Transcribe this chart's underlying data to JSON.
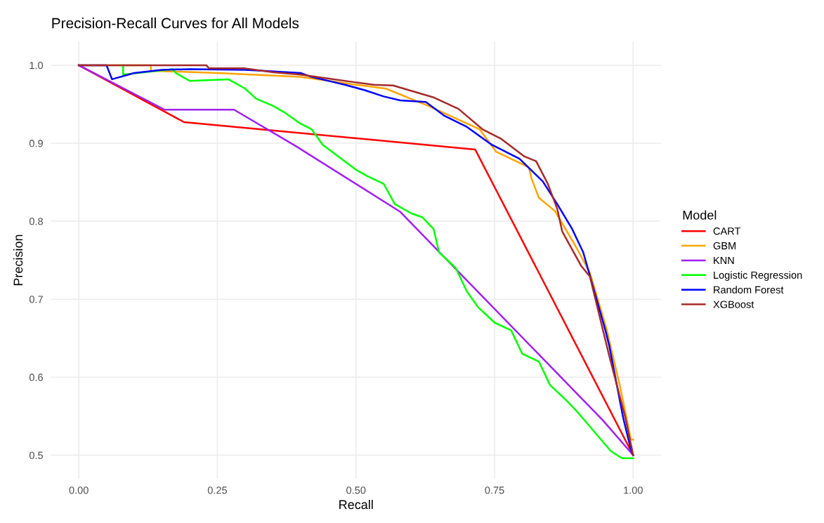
{
  "chart_data": {
    "type": "line",
    "title": "Precision-Recall Curves for All Models",
    "xlabel": "Recall",
    "ylabel": "Precision",
    "legend_title": "Model",
    "xlim": [
      -0.05,
      1.05
    ],
    "ylim": [
      0.47,
      1.03
    ],
    "xticks": [
      {
        "value": 0,
        "label": "0.00"
      },
      {
        "value": 0.25,
        "label": "0.25"
      },
      {
        "value": 0.5,
        "label": "0.50"
      },
      {
        "value": 0.75,
        "label": "0.75"
      },
      {
        "value": 1,
        "label": "1.00"
      }
    ],
    "yticks": [
      0.5,
      0.6,
      0.7,
      0.8,
      0.9,
      {
        "value": 1,
        "label": "1.0"
      }
    ],
    "grid": true,
    "legend": "right",
    "marker": "none",
    "line_style": "solid",
    "series": [
      {
        "name": "CART",
        "color": "#ff0000",
        "x": [
          0,
          0.19,
          0.715,
          1
        ],
        "values": [
          1,
          0.927,
          0.892,
          0.5
        ]
      },
      {
        "name": "GBM",
        "color": "#ffa500",
        "x": [
          0,
          0.13,
          0.13,
          0.25,
          0.4,
          0.5,
          0.554,
          0.63,
          0.723,
          0.753,
          0.812,
          0.817,
          0.83,
          0.859,
          0.897,
          0.922,
          0.952,
          0.977,
          0.996,
          1
        ],
        "values": [
          1,
          1,
          0.993,
          0.99,
          0.985,
          0.975,
          0.97,
          0.948,
          0.918,
          0.889,
          0.869,
          0.854,
          0.83,
          0.813,
          0.767,
          0.734,
          0.662,
          0.586,
          0.52,
          0.52
        ]
      },
      {
        "name": "KNN",
        "color": "#a020f0",
        "x": [
          0,
          0.155,
          0.28,
          0.39,
          0.58,
          0.945,
          1
        ],
        "values": [
          1,
          0.943,
          0.943,
          0.897,
          0.812,
          0.545,
          0.5
        ]
      },
      {
        "name": "Logistic Regression",
        "color": "#00ff00",
        "x": [
          0.08,
          0.08,
          0.17,
          0.175,
          0.2,
          0.27,
          0.3,
          0.32,
          0.35,
          0.37,
          0.4,
          0.42,
          0.44,
          0.47,
          0.5,
          0.52,
          0.55,
          0.57,
          0.6,
          0.62,
          0.64,
          0.65,
          0.68,
          0.7,
          0.72,
          0.75,
          0.78,
          0.8,
          0.83,
          0.85,
          0.88,
          0.9,
          0.93,
          0.96,
          0.98,
          1
        ],
        "values": [
          1,
          0.988,
          0.995,
          0.99,
          0.98,
          0.982,
          0.97,
          0.957,
          0.948,
          0.94,
          0.925,
          0.918,
          0.898,
          0.882,
          0.866,
          0.858,
          0.848,
          0.822,
          0.81,
          0.805,
          0.79,
          0.76,
          0.74,
          0.71,
          0.69,
          0.67,
          0.66,
          0.63,
          0.62,
          0.59,
          0.57,
          0.555,
          0.53,
          0.505,
          0.496,
          0.496
        ]
      },
      {
        "name": "Random Forest",
        "color": "#0000ff",
        "x": [
          0,
          0.05,
          0.06,
          0.1,
          0.15,
          0.2,
          0.3,
          0.33,
          0.4,
          0.42,
          0.45,
          0.48,
          0.516,
          0.55,
          0.58,
          0.626,
          0.66,
          0.7,
          0.745,
          0.795,
          0.837,
          0.863,
          0.89,
          0.91,
          0.93,
          0.95,
          0.957,
          0.982,
          0.995,
          1
        ],
        "values": [
          1,
          1,
          0.982,
          0.99,
          0.994,
          0.995,
          0.994,
          0.993,
          0.99,
          0.985,
          0.98,
          0.975,
          0.968,
          0.96,
          0.955,
          0.953,
          0.935,
          0.921,
          0.898,
          0.88,
          0.851,
          0.822,
          0.79,
          0.76,
          0.71,
          0.66,
          0.64,
          0.548,
          0.51,
          0.5
        ]
      },
      {
        "name": "XGBoost",
        "color": "#a52a2a",
        "x": [
          0,
          0.23,
          0.235,
          0.3,
          0.351,
          0.4,
          0.449,
          0.5,
          0.532,
          0.567,
          0.639,
          0.685,
          0.728,
          0.761,
          0.804,
          0.825,
          0.846,
          0.863,
          0.872,
          0.906,
          0.922,
          0.957,
          0.986,
          1
        ],
        "values": [
          1,
          1,
          0.996,
          0.996,
          0.991,
          0.988,
          0.983,
          0.978,
          0.975,
          0.974,
          0.959,
          0.944,
          0.918,
          0.906,
          0.883,
          0.877,
          0.848,
          0.816,
          0.787,
          0.743,
          0.729,
          0.627,
          0.548,
          0.5
        ]
      }
    ]
  }
}
